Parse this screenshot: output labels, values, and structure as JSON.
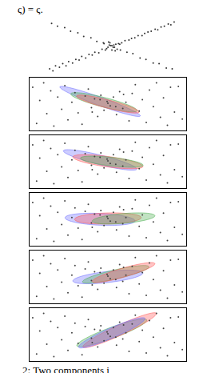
{
  "header": "ς) = ς.",
  "caption": "2: Two components i",
  "chart_data": [
    {
      "type": "scatter",
      "tick_labels": false,
      "grid": false,
      "color": "#333333",
      "xlim": [
        -10,
        10
      ],
      "ylim": [
        -4,
        4
      ],
      "x": [
        -9.5,
        -9,
        -8.6,
        -8,
        -7.5,
        -7,
        -6.6,
        -6,
        -5.5,
        -5,
        -4.6,
        -4,
        -3.5,
        -3,
        -2.6,
        -2,
        -1.5,
        -1,
        -0.6,
        -0.2,
        0.2,
        0.6,
        1,
        1.5,
        2,
        2.6,
        3,
        3.5,
        4,
        4.6,
        5,
        5.5,
        6,
        6.6,
        7,
        7.5,
        8,
        8.6,
        9,
        9.5,
        -9.2,
        -8.3,
        -7.2,
        -6.3,
        -5.2,
        -4.3,
        -3.2,
        -2.3,
        -1.3,
        -0.4,
        0.4,
        1.3,
        2.3,
        3.2,
        4.3,
        5.2,
        6.3,
        7.2,
        8.3,
        9.2,
        -1.2,
        -0.8,
        -0.3,
        0,
        0.3,
        0.8,
        1.2,
        -0.5,
        0.5,
        0
      ],
      "values": [
        -3.1,
        -3.4,
        -2.7,
        -2.9,
        -2.4,
        -2.7,
        -2.1,
        -2.3,
        -1.8,
        -1.9,
        -1.4,
        -1.6,
        -1.1,
        -1.2,
        -0.8,
        -0.9,
        -0.4,
        -0.5,
        -0.1,
        0.1,
        -0.1,
        0.3,
        0.4,
        0.5,
        0.8,
        0.9,
        1.1,
        1.2,
        1.5,
        1.5,
        1.8,
        2.0,
        2.1,
        2.4,
        2.3,
        2.7,
        2.8,
        3.1,
        3.0,
        3.4,
        3.2,
        2.8,
        2.6,
        2.1,
        1.9,
        1.4,
        1.2,
        0.7,
        0.5,
        0.2,
        -0.1,
        -0.5,
        -0.8,
        -1.0,
        -1.6,
        -1.8,
        -2.3,
        -2.4,
        -3.0,
        -3.1,
        0.4,
        -0.3,
        0.5,
        -0.5,
        0.2,
        -0.4,
        0.3,
        0.6,
        -0.6,
        0.1
      ]
    },
    {
      "type": "scatter",
      "tick_labels": false,
      "grid": false,
      "color": "#444444",
      "xlim": [
        -10,
        10
      ],
      "ylim": [
        -3,
        3
      ],
      "x": [
        -9.6,
        -9.1,
        -8.7,
        -8.2,
        -7.8,
        -7.3,
        -6.9,
        -6.4,
        -5.9,
        -5.5,
        -5.1,
        -4.6,
        -4.2,
        -3.8,
        -3.3,
        -2.9,
        -2.5,
        -2.1,
        -1.7,
        -1.3,
        -0.9,
        -0.5,
        -0.1,
        0.3,
        0.7,
        1.1,
        1.5,
        1.9,
        2.3,
        2.7,
        3.1,
        3.5,
        4.0,
        4.4,
        4.9,
        5.3,
        5.8,
        6.2,
        6.7,
        7.1,
        7.6,
        8.0,
        8.5,
        9.0,
        9.5,
        -1.0,
        0.0,
        1.0,
        -2.0,
        2.0
      ],
      "values": [
        1.9,
        -2.2,
        0.4,
        2.4,
        -1.1,
        1.5,
        -2.5,
        0.8,
        -0.6,
        2.1,
        -1.8,
        0.2,
        1.3,
        -1.0,
        -2.3,
        0.9,
        1.7,
        -0.4,
        0.6,
        -1.4,
        1.0,
        -0.7,
        0.3,
        -0.2,
        0.8,
        -1.2,
        1.4,
        -0.5,
        0.2,
        -1.9,
        1.2,
        2.2,
        -0.8,
        0.5,
        -2.1,
        1.6,
        -0.3,
        2.4,
        -1.5,
        0.7,
        -2.4,
        1.9,
        -0.9,
        2.0,
        -1.7,
        0.5,
        0.1,
        -0.3,
        -0.9,
        1.1
      ],
      "panels": [
        {
          "components": [
            {
              "color": "#7070ff",
              "mean": [
                -1,
                0.3
              ],
              "cov": [
                [
                  6.6,
                  -2.1
                ],
                [
                  -2.1,
                  0.73
                ]
              ]
            },
            {
              "color": "#4caf50",
              "mean": [
                -0.5,
                0.2
              ],
              "cov": [
                [
                  4.5,
                  -1.0
                ],
                [
                  -1.0,
                  0.3
                ]
              ]
            },
            {
              "color": "#ff5a5a",
              "mean": [
                0,
                0
              ],
              "cov": [
                [
                  4,
                  -0.9
                ],
                [
                  -0.9,
                  0.26
                ]
              ]
            }
          ]
        },
        {
          "components": [
            {
              "color": "#7070ff",
              "mean": [
                -1,
                0.2
              ],
              "cov": [
                [
                  5.5,
                  -1.2
                ],
                [
                  -1.2,
                  0.34
                ]
              ]
            },
            {
              "color": "#ff5a5a",
              "mean": [
                0,
                0
              ],
              "cov": [
                [
                  5,
                  -0.6
                ],
                [
                  -0.6,
                  0.16
                ]
              ]
            },
            {
              "color": "#4caf50",
              "mean": [
                0.5,
                0
              ],
              "cov": [
                [
                  4,
                  -0.4
                ],
                [
                  -0.4,
                  0.1
                ]
              ]
            }
          ]
        },
        {
          "components": [
            {
              "color": "#7070ff",
              "mean": [
                -1,
                0
              ],
              "cov": [
                [
                  5,
                  -0.2
                ],
                [
                  -0.2,
                  0.12
                ]
              ]
            },
            {
              "color": "#ff5a5a",
              "mean": [
                0,
                0.1
              ],
              "cov": [
                [
                  4.5,
                  0.1
                ],
                [
                  0.1,
                  0.1
                ]
              ]
            },
            {
              "color": "#4caf50",
              "mean": [
                2,
                0.1
              ],
              "cov": [
                [
                  4,
                  0.3
                ],
                [
                  0.3,
                  0.1
                ]
              ]
            }
          ]
        },
        {
          "components": [
            {
              "color": "#7070ff",
              "mean": [
                0,
                0
              ],
              "cov": [
                [
                  5,
                  0.5
                ],
                [
                  0.5,
                  0.15
                ]
              ]
            },
            {
              "color": "#4caf50",
              "mean": [
                1,
                0.3
              ],
              "cov": [
                [
                  4.5,
                  0.9
                ],
                [
                  0.9,
                  0.25
                ]
              ]
            },
            {
              "color": "#ff5a5a",
              "mean": [
                2,
                0.5
              ],
              "cov": [
                [
                  4,
                  1.0
                ],
                [
                  1.0,
                  0.32
                ]
              ]
            }
          ]
        },
        {
          "components": [
            {
              "color": "#4caf50",
              "mean": [
                0.5,
                0.2
              ],
              "cov": [
                [
                  5,
                  1.6
                ],
                [
                  1.6,
                  0.62
                ]
              ]
            },
            {
              "color": "#ff5a5a",
              "mean": [
                1.5,
                0.5
              ],
              "cov": [
                [
                  5.5,
                  2.2
                ],
                [
                  2.2,
                  0.98
                ]
              ]
            },
            {
              "color": "#7070ff",
              "mean": [
                0.5,
                0.2
              ],
              "cov": [
                [
                  4.5,
                  1.7
                ],
                [
                  1.7,
                  0.74
                ]
              ]
            }
          ]
        }
      ]
    }
  ]
}
